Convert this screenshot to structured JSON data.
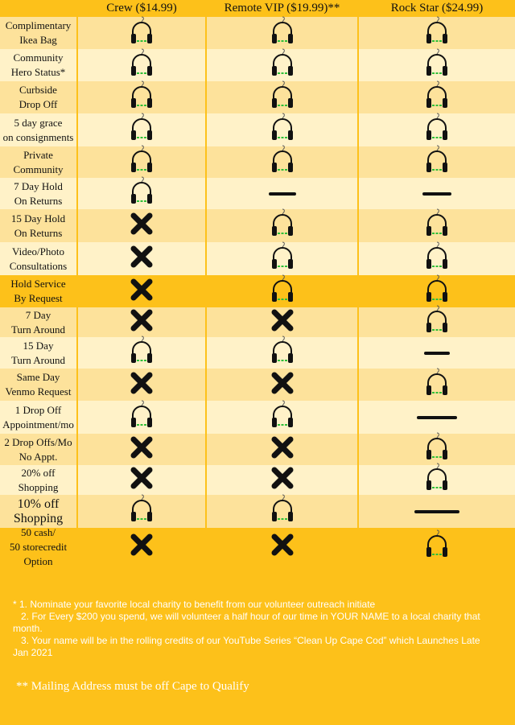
{
  "columns": [
    "Crew ($14.99)",
    "Remote VIP ($19.99)**",
    "Rock Star ($24.99)"
  ],
  "rows": [
    {
      "label": "Complimentary\nIkea Bag",
      "cells": [
        "yes",
        "yes",
        "yes"
      ]
    },
    {
      "label": "Community\nHero Status*",
      "cells": [
        "yes",
        "yes",
        "yes"
      ]
    },
    {
      "label": "Curbside\nDrop  Off",
      "cells": [
        "yes",
        "yes",
        "yes"
      ]
    },
    {
      "label": "5 day grace\non consignments",
      "cells": [
        "yes",
        "yes",
        "yes"
      ]
    },
    {
      "label": "Private\nCommunity",
      "cells": [
        "yes",
        "yes",
        "yes"
      ]
    },
    {
      "label": "7 Day Hold\nOn Returns",
      "cells": [
        "yes",
        "dash",
        "dash"
      ]
    },
    {
      "label": "15 Day Hold\nOn Returns",
      "cells": [
        "no",
        "yes",
        "yes"
      ]
    },
    {
      "label": "Video/Photo\nConsultations",
      "cells": [
        "no",
        "yes",
        "yes"
      ]
    },
    {
      "label": "Hold Service\nBy Request",
      "cells": [
        "no",
        "yes",
        "yes"
      ]
    },
    {
      "label": "7 Day\nTurn Around",
      "cells": [
        "no",
        "no",
        "yes"
      ]
    },
    {
      "label": "15 Day\nTurn Around",
      "cells": [
        "yes",
        "yes",
        "dash"
      ]
    },
    {
      "label": "Same Day\nVenmo Request",
      "cells": [
        "no",
        "no",
        "yes"
      ]
    },
    {
      "label": "1 Drop Off\nAppointment/mo",
      "cells": [
        "yes",
        "yes",
        "dash"
      ]
    },
    {
      "label": "2 Drop Offs/Mo\nNo Appt.",
      "cells": [
        "no",
        "no",
        "yes"
      ]
    },
    {
      "label": "20% off\nShopping",
      "cells": [
        "no",
        "no",
        "yes"
      ]
    },
    {
      "label": "10% off\nShopping",
      "cells": [
        "yes",
        "yes",
        "dash"
      ]
    },
    {
      "label": "50 cash/\n50 storecredit Option",
      "cells": [
        "no",
        "no",
        "yes"
      ]
    }
  ],
  "notes": [
    "* 1. Nominate your favorite local charity to benefit from our volunteer outreach initiate",
    "   2. For Every $200 you spend, we will volunteer a half hour of our time in YOUR NAME to a local charity that month.",
    "   3. Your name will be in the rolling credits of our YouTube Series “Clean Up Cape Cod” which Launches Late Jan 2021"
  ],
  "mailing_note": "** Mailing Address must be off Cape to Qualify",
  "colors": {
    "background": "#fdc11a",
    "light": "#fff2c8",
    "mid": "#fde29b",
    "mark": "#111111",
    "accent": "#2fbf3a"
  },
  "icons": {
    "yes": "headphones-icon",
    "no": "x-mark-icon",
    "dash": "dash-icon"
  }
}
